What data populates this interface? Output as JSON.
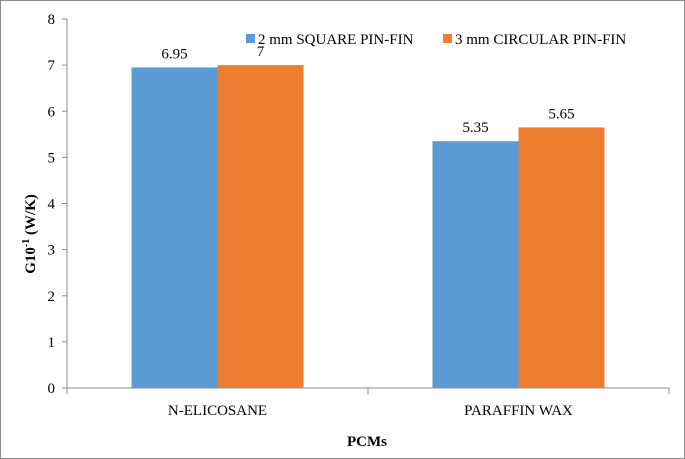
{
  "chart_data": {
    "type": "bar",
    "categories": [
      "N-ELICOSANE",
      "PARAFFIN WAX"
    ],
    "series": [
      {
        "name": "2 mm SQUARE PIN-FIN",
        "values": [
          6.95,
          5.35
        ],
        "labels": [
          "6.95",
          "5.35"
        ],
        "color": "#5b9bd5"
      },
      {
        "name": "3 mm CIRCULAR PIN-FIN",
        "values": [
          7,
          5.65
        ],
        "labels": [
          "7",
          "5.65"
        ],
        "color": "#ed7d31"
      }
    ],
    "xlabel": "PCMs",
    "ylabel_main": "G10",
    "ylabel_sup": "-1",
    "ylabel_rest": " (W/K)",
    "ylim": [
      0,
      8
    ],
    "yticks": [
      0,
      1,
      2,
      3,
      4,
      5,
      6,
      7,
      8
    ],
    "legend_position": "top-right",
    "grid": false
  }
}
